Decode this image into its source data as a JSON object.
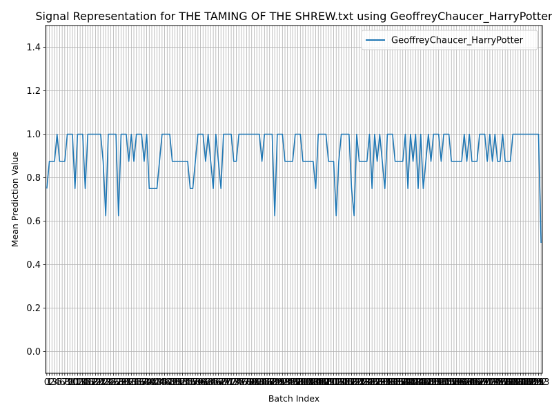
{
  "chart_data": {
    "type": "line",
    "title": "Signal Representation for THE TAMING OF THE SHREW.txt using GeoffreyChaucer_HarryPotter",
    "xlabel": "Batch Index",
    "ylabel": "Mean Prediction Value",
    "ylim": [
      -0.1,
      1.5
    ],
    "yticks": [
      0.0,
      0.2,
      0.4,
      0.6,
      0.8,
      1.0,
      1.2,
      1.4
    ],
    "ytick_labels": [
      "0.0",
      "0.2",
      "0.4",
      "0.6",
      "0.8",
      "1.0",
      "1.2",
      "1.4"
    ],
    "xticks_every_index": true,
    "grid": true,
    "legend_position": "top-right",
    "series": [
      {
        "name": "GeoffreyChaucer_HarryPotter",
        "color": "#1f77b4",
        "values": [
          0.75,
          0.875,
          0.875,
          0.875,
          1.0,
          0.875,
          0.875,
          0.875,
          1.0,
          1.0,
          1.0,
          0.75,
          1.0,
          1.0,
          1.0,
          0.75,
          1.0,
          1.0,
          1.0,
          1.0,
          1.0,
          1.0,
          0.875,
          0.625,
          1.0,
          1.0,
          1.0,
          1.0,
          0.625,
          1.0,
          1.0,
          1.0,
          0.875,
          1.0,
          0.875,
          1.0,
          1.0,
          1.0,
          0.875,
          1.0,
          0.75,
          0.75,
          0.75,
          0.75,
          0.875,
          1.0,
          1.0,
          1.0,
          1.0,
          0.875,
          0.875,
          0.875,
          0.875,
          0.875,
          0.875,
          0.875,
          0.75,
          0.75,
          0.875,
          1.0,
          1.0,
          1.0,
          0.875,
          1.0,
          0.875,
          0.75,
          1.0,
          0.875,
          0.75,
          1.0,
          1.0,
          1.0,
          1.0,
          0.875,
          0.875,
          1.0,
          1.0,
          1.0,
          1.0,
          1.0,
          1.0,
          1.0,
          1.0,
          1.0,
          0.875,
          1.0,
          1.0,
          1.0,
          1.0,
          0.625,
          1.0,
          1.0,
          1.0,
          0.875,
          0.875,
          0.875,
          0.875,
          1.0,
          1.0,
          1.0,
          0.875,
          0.875,
          0.875,
          0.875,
          0.875,
          0.75,
          1.0,
          1.0,
          1.0,
          1.0,
          0.875,
          0.875,
          0.875,
          0.625,
          0.875,
          1.0,
          1.0,
          1.0,
          1.0,
          0.75,
          0.625,
          1.0,
          0.875,
          0.875,
          0.875,
          0.875,
          1.0,
          0.75,
          1.0,
          0.875,
          1.0,
          0.875,
          0.75,
          1.0,
          1.0,
          1.0,
          0.875,
          0.875,
          0.875,
          0.875,
          1.0,
          0.75,
          1.0,
          0.875,
          1.0,
          0.75,
          1.0,
          0.75,
          0.875,
          1.0,
          0.875,
          1.0,
          1.0,
          1.0,
          0.875,
          1.0,
          1.0,
          1.0,
          0.875,
          0.875,
          0.875,
          0.875,
          0.875,
          1.0,
          0.875,
          1.0,
          0.875,
          0.875,
          0.875,
          1.0,
          1.0,
          1.0,
          0.875,
          1.0,
          0.875,
          1.0,
          0.875,
          0.875,
          1.0,
          0.875,
          0.875,
          0.875,
          1.0,
          1.0,
          1.0,
          1.0,
          1.0,
          1.0,
          1.0,
          1.0,
          1.0,
          1.0,
          1.0,
          0.5
        ]
      }
    ]
  }
}
